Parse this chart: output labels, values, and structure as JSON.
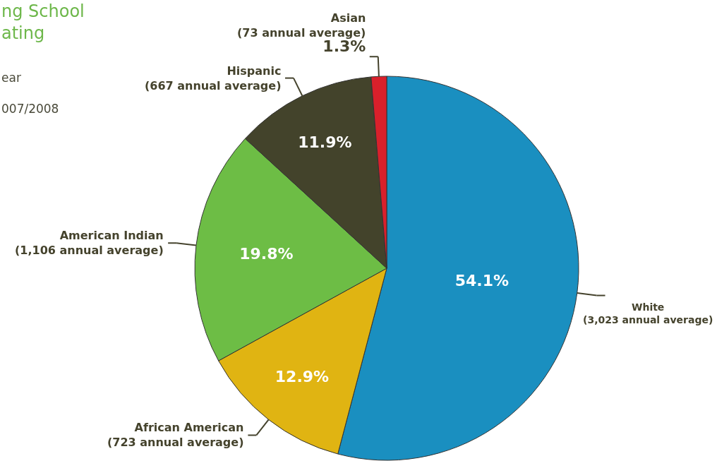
{
  "chart_data": {
    "type": "pie",
    "title": "ng School\nating",
    "subtitle": "ear\n007/2008",
    "categories": [
      "White\n(3,023 annual average)",
      "African American\n(723 annual average)",
      "American Indian\n(1,106 annual average)",
      "Hispanic\n(667 annual average)",
      "Asian\n(73 annual average)"
    ],
    "values": [
      54.1,
      12.9,
      19.8,
      11.9,
      1.3
    ],
    "colors": [
      "#1a8fc0",
      "#e0b412",
      "#6dbd45",
      "#43432b",
      "#d9202b"
    ],
    "value_labels": [
      "54.1%",
      "12.9%",
      "19.8%",
      "11.9%",
      "1.3%"
    ]
  }
}
